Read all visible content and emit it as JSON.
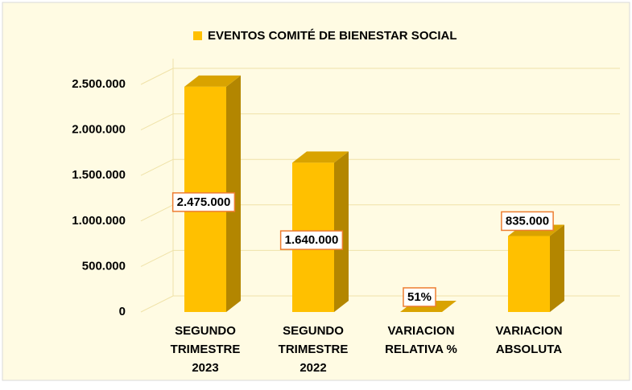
{
  "chart_data": {
    "type": "bar3d",
    "legend": "EVENTOS COMITÉ DE BIENESTAR SOCIAL",
    "categories": [
      "SEGUNDO TRIMESTRE 2023",
      "SEGUNDO TRIMESTRE 2022",
      "VARIACION RELATIVA %",
      "VARIACION ABSOLUTA"
    ],
    "values": [
      2475000,
      1640000,
      51,
      835000
    ],
    "value_labels": [
      "2.475.000",
      "1.640.000",
      "51%",
      "835.000"
    ],
    "color": "#ffc000",
    "ylim": [
      0,
      2500000
    ],
    "yticks": [
      0,
      {
        "value": 500000,
        "label": "500.000"
      },
      {
        "value": 1000000,
        "label": "1.000.000"
      },
      {
        "value": 1500000,
        "label": "1.500.000"
      },
      {
        "value": 2000000,
        "label": "2.000.000"
      },
      {
        "value": 2500000,
        "label": "2.500.000"
      }
    ],
    "grid": true
  }
}
